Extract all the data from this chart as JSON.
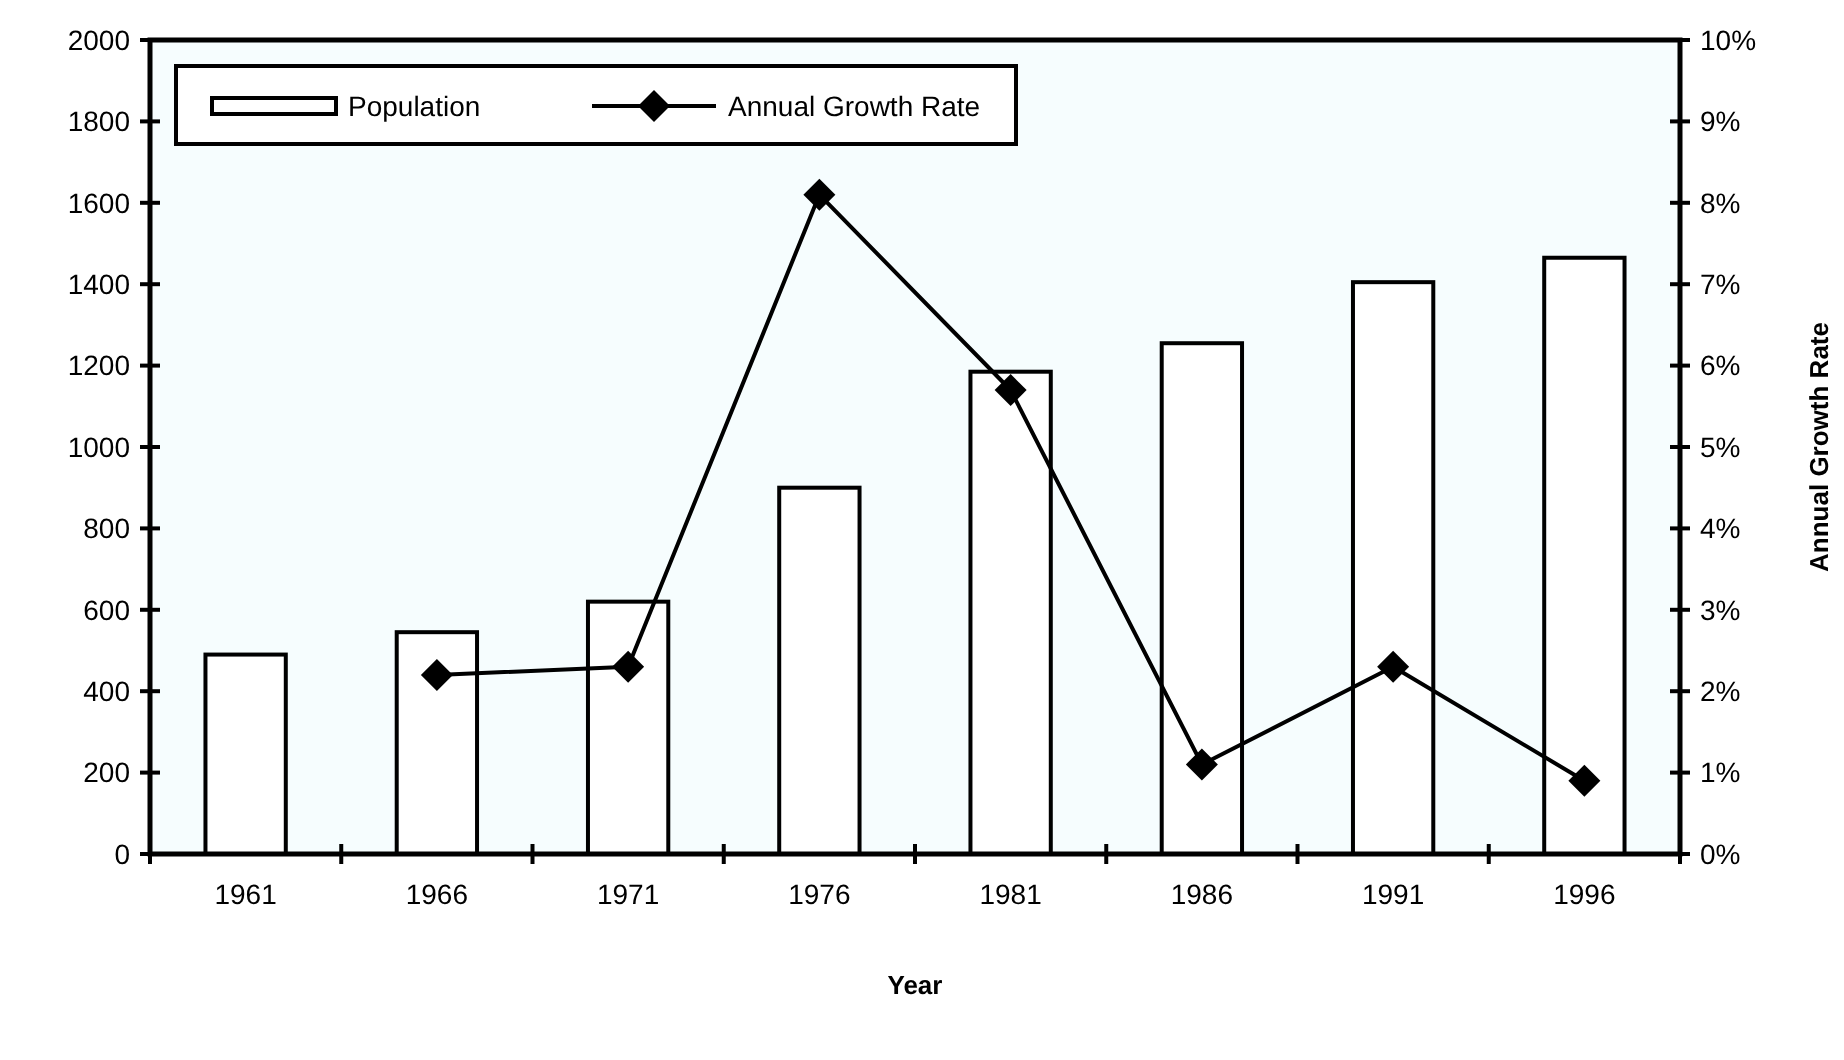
{
  "chart_data": {
    "type": "bar",
    "xlabel": "Year",
    "y2label": "Annual Growth Rate",
    "categories": [
      "1961",
      "1966",
      "1971",
      "1976",
      "1981",
      "1986",
      "1991",
      "1996"
    ],
    "series": [
      {
        "name": "Population",
        "type": "bar",
        "color": "#ffffff",
        "values": [
          490,
          545,
          620,
          900,
          1185,
          1255,
          1405,
          1465
        ]
      },
      {
        "name": "Annual Growth Rate",
        "type": "line",
        "axis": "y2",
        "color": "#000000",
        "marker": "diamond",
        "values": [
          null,
          2.2,
          2.3,
          8.1,
          5.7,
          1.1,
          2.3,
          0.9
        ]
      }
    ],
    "ylim": [
      0,
      2000
    ],
    "yticks": [
      0,
      200,
      400,
      600,
      800,
      1000,
      1200,
      1400,
      1600,
      1800,
      2000
    ],
    "y2lim": [
      0,
      10
    ],
    "y2ticks": [
      {
        "value": 0,
        "label": "0%"
      },
      {
        "value": 1,
        "label": "1%"
      },
      {
        "value": 2,
        "label": "2%"
      },
      {
        "value": 3,
        "label": "3%"
      },
      {
        "value": 4,
        "label": "4%"
      },
      {
        "value": 5,
        "label": "5%"
      },
      {
        "value": 6,
        "label": "6%"
      },
      {
        "value": 7,
        "label": "7%"
      },
      {
        "value": 8,
        "label": "8%"
      },
      {
        "value": 9,
        "label": "9%"
      },
      {
        "value": 10,
        "label": "10%"
      }
    ],
    "legend": "top left",
    "grid": false
  }
}
